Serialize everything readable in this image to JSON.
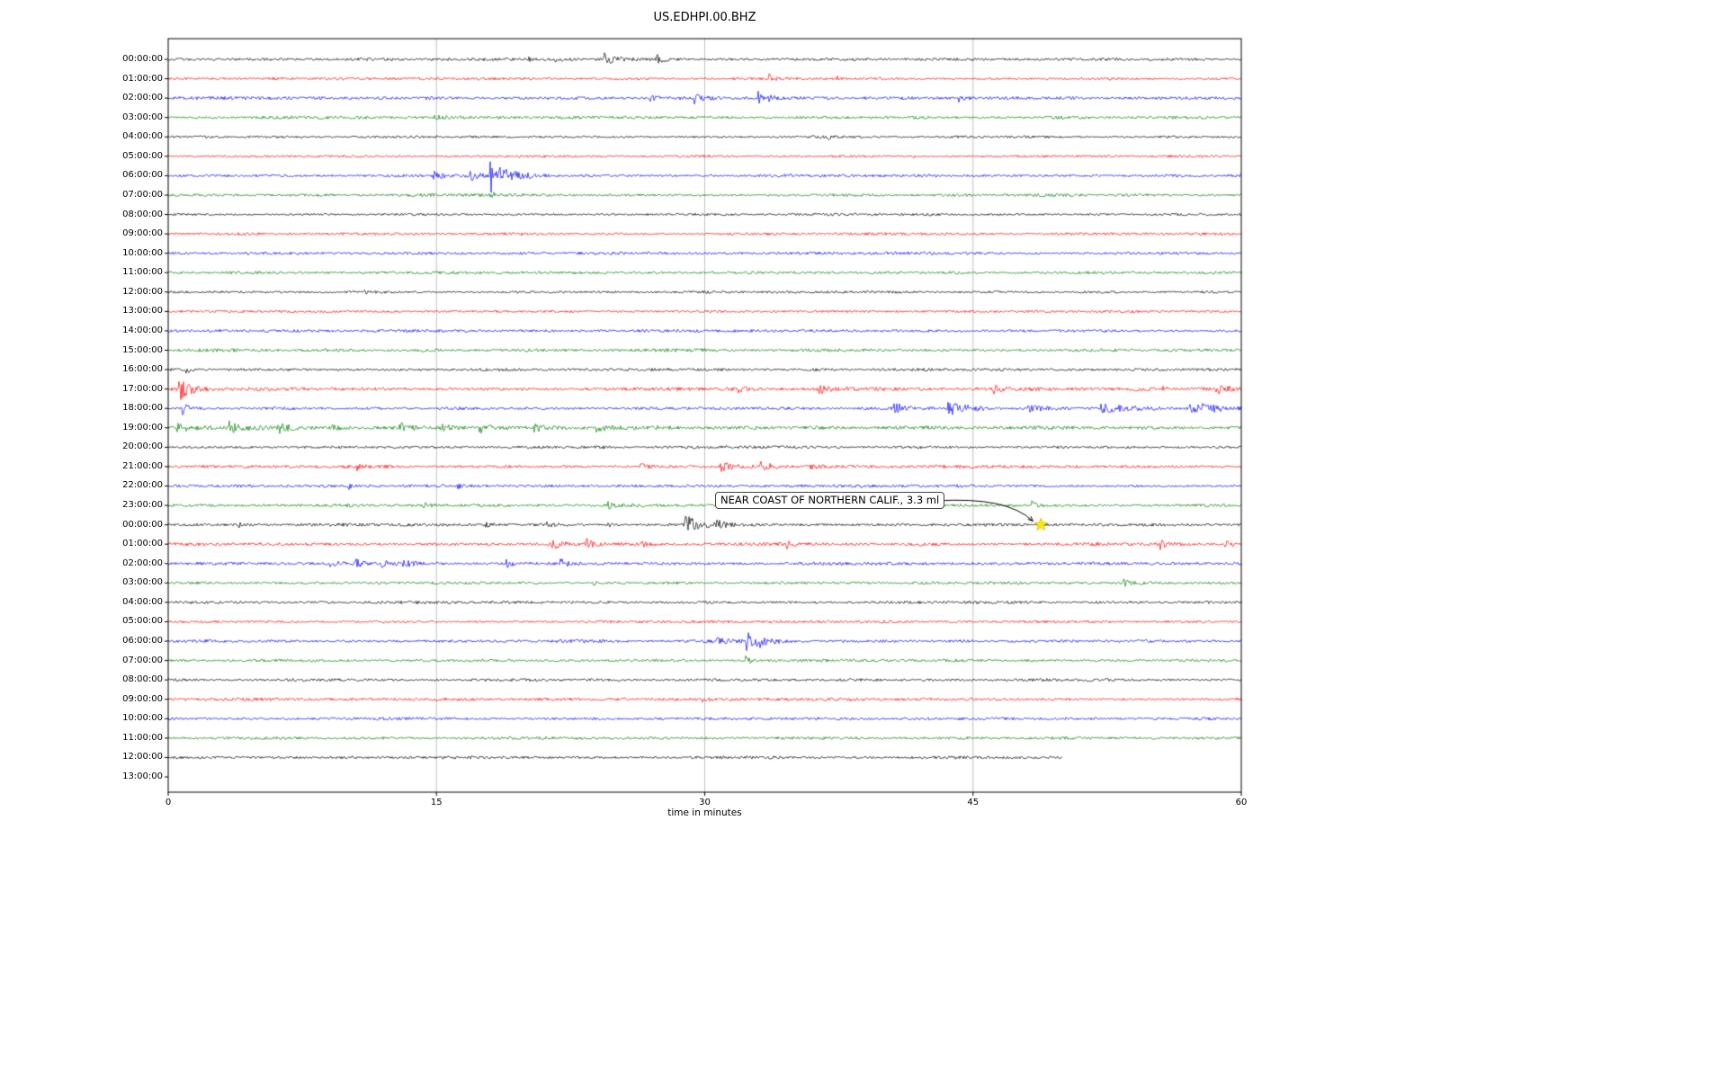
{
  "title": "US.EDHPI.00.BHZ",
  "chart_data": {
    "type": "line",
    "subtype": "seismogram-dayplot",
    "title": "US.EDHPI.00.BHZ",
    "xlabel": "time in minutes",
    "xlim": [
      0,
      60
    ],
    "x_ticks": [
      0,
      15,
      30,
      45,
      60
    ],
    "trace_color_cycle": [
      "#000000",
      "#ff0000",
      "#0000ff",
      "#008000"
    ],
    "grid_color": "#b0b0b0",
    "rows": [
      {
        "label": "00:00:00",
        "color": "#000000",
        "amp": 1.4,
        "events": [
          {
            "t": 20.1,
            "a": 2.5,
            "d": 0.5
          },
          {
            "t": 21.6,
            "a": 3,
            "d": 0.8
          },
          {
            "t": 24.4,
            "a": 6,
            "d": 1.2
          },
          {
            "t": 27.3,
            "a": 5,
            "d": 0.9
          }
        ]
      },
      {
        "label": "01:00:00",
        "color": "#ff0000",
        "amp": 1.3,
        "events": [
          {
            "t": 33.6,
            "a": 3.5,
            "d": 0.5
          },
          {
            "t": 37.4,
            "a": 3,
            "d": 0.5
          }
        ]
      },
      {
        "label": "02:00:00",
        "color": "#0000ff",
        "amp": 1.5,
        "events": [
          {
            "t": 26.9,
            "a": 3,
            "d": 0.9
          },
          {
            "t": 29.4,
            "a": 5,
            "d": 1.0
          },
          {
            "t": 33.0,
            "a": 9,
            "d": 1.2
          },
          {
            "t": 44.2,
            "a": 3,
            "d": 0.7
          }
        ]
      },
      {
        "label": "03:00:00",
        "color": "#008000",
        "amp": 1.5,
        "events": [
          {
            "t": 14.9,
            "a": 3,
            "d": 0.9
          }
        ]
      },
      {
        "label": "04:00:00",
        "color": "#000000",
        "amp": 1.2,
        "events": [
          {
            "t": 36.9,
            "a": 2,
            "d": 0.5
          }
        ]
      },
      {
        "label": "05:00:00",
        "color": "#ff0000",
        "amp": 1.2,
        "events": [
          {
            "t": 41.6,
            "a": 2.5,
            "d": 0.5
          }
        ]
      },
      {
        "label": "06:00:00",
        "color": "#0000ff",
        "amp": 1.5,
        "events": [
          {
            "t": 14.8,
            "a": 4,
            "d": 1.2
          },
          {
            "t": 16.9,
            "a": 5,
            "d": 0.9
          },
          {
            "t": 18.0,
            "a": 26,
            "d": 0.35
          },
          {
            "t": 18.5,
            "a": 8,
            "d": 2.0
          }
        ]
      },
      {
        "label": "07:00:00",
        "color": "#008000",
        "amp": 1.4,
        "events": [
          {
            "t": 18.0,
            "a": 5,
            "d": 0.6
          }
        ]
      },
      {
        "label": "08:00:00",
        "color": "#000000",
        "amp": 1.2,
        "events": []
      },
      {
        "label": "09:00:00",
        "color": "#ff0000",
        "amp": 1.3,
        "events": []
      },
      {
        "label": "10:00:00",
        "color": "#0000ff",
        "amp": 1.4,
        "events": []
      },
      {
        "label": "11:00:00",
        "color": "#008000",
        "amp": 1.4,
        "events": []
      },
      {
        "label": "12:00:00",
        "color": "#000000",
        "amp": 1.3,
        "events": [
          {
            "t": 10.9,
            "a": 2.5,
            "d": 0.5
          }
        ]
      },
      {
        "label": "13:00:00",
        "color": "#ff0000",
        "amp": 1.2,
        "events": []
      },
      {
        "label": "14:00:00",
        "color": "#0000ff",
        "amp": 1.4,
        "events": []
      },
      {
        "label": "15:00:00",
        "color": "#008000",
        "amp": 1.6,
        "events": []
      },
      {
        "label": "16:00:00",
        "color": "#000000",
        "amp": 1.4,
        "events": [
          {
            "t": 1.0,
            "a": 5,
            "d": 0.5
          }
        ]
      },
      {
        "label": "17:00:00",
        "color": "#ff0000",
        "amp": 1.8,
        "events": [
          {
            "t": 0.6,
            "a": 12,
            "d": 1.6
          },
          {
            "t": 31.9,
            "a": 4,
            "d": 0.7
          },
          {
            "t": 36.4,
            "a": 5,
            "d": 0.9
          },
          {
            "t": 46.1,
            "a": 4,
            "d": 0.7
          },
          {
            "t": 55.6,
            "a": 3,
            "d": 0.6
          },
          {
            "t": 58.6,
            "a": 6,
            "d": 1.4
          }
        ]
      },
      {
        "label": "18:00:00",
        "color": "#0000ff",
        "amp": 1.6,
        "events": [
          {
            "t": 0.8,
            "a": 8,
            "d": 0.7
          },
          {
            "t": 40.6,
            "a": 5,
            "d": 1.8
          },
          {
            "t": 43.6,
            "a": 6,
            "d": 2.5
          },
          {
            "t": 48.1,
            "a": 5,
            "d": 1.8
          },
          {
            "t": 52.1,
            "a": 6,
            "d": 2.5
          },
          {
            "t": 57.1,
            "a": 8,
            "d": 2.5
          }
        ]
      },
      {
        "label": "19:00:00",
        "color": "#008000",
        "amp": 1.8,
        "events": [
          {
            "t": 0.5,
            "a": 5,
            "d": 1.8
          },
          {
            "t": 3.4,
            "a": 6,
            "d": 1.4
          },
          {
            "t": 6.1,
            "a": 4,
            "d": 1.8
          },
          {
            "t": 9.1,
            "a": 4,
            "d": 1.4
          },
          {
            "t": 12.9,
            "a": 6,
            "d": 1.4
          },
          {
            "t": 15.1,
            "a": 4,
            "d": 1.8
          },
          {
            "t": 17.4,
            "a": 6,
            "d": 1.1
          },
          {
            "t": 20.4,
            "a": 6,
            "d": 0.9
          },
          {
            "t": 23.9,
            "a": 5,
            "d": 1.4
          },
          {
            "t": 27.1,
            "a": 3,
            "d": 0.9
          }
        ]
      },
      {
        "label": "20:00:00",
        "color": "#000000",
        "amp": 1.4,
        "events": []
      },
      {
        "label": "21:00:00",
        "color": "#ff0000",
        "amp": 1.5,
        "events": [
          {
            "t": 10.5,
            "a": 4,
            "d": 0.5
          },
          {
            "t": 26.4,
            "a": 5,
            "d": 0.7
          },
          {
            "t": 30.9,
            "a": 5,
            "d": 1.1
          },
          {
            "t": 33.1,
            "a": 4,
            "d": 1.3
          },
          {
            "t": 35.9,
            "a": 3,
            "d": 0.7
          }
        ]
      },
      {
        "label": "22:00:00",
        "color": "#0000ff",
        "amp": 1.4,
        "events": [
          {
            "t": 10.1,
            "a": 3,
            "d": 0.5
          },
          {
            "t": 16.1,
            "a": 3,
            "d": 0.5
          }
        ]
      },
      {
        "label": "23:00:00",
        "color": "#008000",
        "amp": 1.5,
        "events": [
          {
            "t": 14.3,
            "a": 3,
            "d": 0.6
          },
          {
            "t": 24.6,
            "a": 3,
            "d": 0.6
          },
          {
            "t": 48.3,
            "a": 3,
            "d": 0.6
          }
        ]
      },
      {
        "label": "00:00:00",
        "color": "#000000",
        "amp": 1.4,
        "events": [
          {
            "t": 3.9,
            "a": 3,
            "d": 0.5
          },
          {
            "t": 17.6,
            "a": 4,
            "d": 0.6
          },
          {
            "t": 21.1,
            "a": 3,
            "d": 0.6
          },
          {
            "t": 24.6,
            "a": 3,
            "d": 0.5
          },
          {
            "t": 28.9,
            "a": 9,
            "d": 1.5
          },
          {
            "t": 30.6,
            "a": 4,
            "d": 0.9
          }
        ]
      },
      {
        "label": "01:00:00",
        "color": "#ff0000",
        "amp": 1.6,
        "events": [
          {
            "t": 21.4,
            "a": 5,
            "d": 1.1
          },
          {
            "t": 23.4,
            "a": 4,
            "d": 0.8
          },
          {
            "t": 26.5,
            "a": 4,
            "d": 0.7
          },
          {
            "t": 34.6,
            "a": 3,
            "d": 0.6
          },
          {
            "t": 55.4,
            "a": 5,
            "d": 0.6
          },
          {
            "t": 59.1,
            "a": 5,
            "d": 0.8
          }
        ]
      },
      {
        "label": "02:00:00",
        "color": "#0000ff",
        "amp": 1.5,
        "events": [
          {
            "t": 8.9,
            "a": 5,
            "d": 0.9
          },
          {
            "t": 10.4,
            "a": 5,
            "d": 0.9
          },
          {
            "t": 11.9,
            "a": 6,
            "d": 0.9
          },
          {
            "t": 13.1,
            "a": 4,
            "d": 0.8
          },
          {
            "t": 18.9,
            "a": 4,
            "d": 0.8
          },
          {
            "t": 21.9,
            "a": 5,
            "d": 0.8
          }
        ]
      },
      {
        "label": "03:00:00",
        "color": "#008000",
        "amp": 1.4,
        "events": [
          {
            "t": 23.8,
            "a": 4,
            "d": 0.5
          },
          {
            "t": 53.4,
            "a": 4,
            "d": 0.5
          }
        ]
      },
      {
        "label": "04:00:00",
        "color": "#000000",
        "amp": 1.3,
        "events": []
      },
      {
        "label": "05:00:00",
        "color": "#ff0000",
        "amp": 1.3,
        "events": []
      },
      {
        "label": "06:00:00",
        "color": "#0000ff",
        "amp": 1.5,
        "events": [
          {
            "t": 30.6,
            "a": 4,
            "d": 1.3
          },
          {
            "t": 32.3,
            "a": 22,
            "d": 0.4
          },
          {
            "t": 32.9,
            "a": 6,
            "d": 1.3
          }
        ]
      },
      {
        "label": "07:00:00",
        "color": "#008000",
        "amp": 1.4,
        "events": [
          {
            "t": 32.3,
            "a": 5,
            "d": 0.5
          }
        ]
      },
      {
        "label": "08:00:00",
        "color": "#000000",
        "amp": 1.4,
        "events": []
      },
      {
        "label": "09:00:00",
        "color": "#ff0000",
        "amp": 1.5,
        "events": [
          {
            "t": 29.8,
            "a": 3,
            "d": 0.5
          }
        ]
      },
      {
        "label": "10:00:00",
        "color": "#0000ff",
        "amp": 1.4,
        "events": []
      },
      {
        "label": "11:00:00",
        "color": "#008000",
        "amp": 1.4,
        "events": []
      },
      {
        "label": "12:00:00",
        "color": "#000000",
        "amp": 1.5,
        "end_minute": 50,
        "events": []
      },
      {
        "label": "13:00:00",
        "color": "#ff0000",
        "amp": 0,
        "events": []
      }
    ],
    "annotation": {
      "text": "NEAR COAST OF NORTHERN CALIF., 3.3 ml",
      "row_index": 24,
      "row_label": "00:00:00",
      "t_minutes": 48.8,
      "marker": "star",
      "marker_color": "#ffe800"
    }
  }
}
